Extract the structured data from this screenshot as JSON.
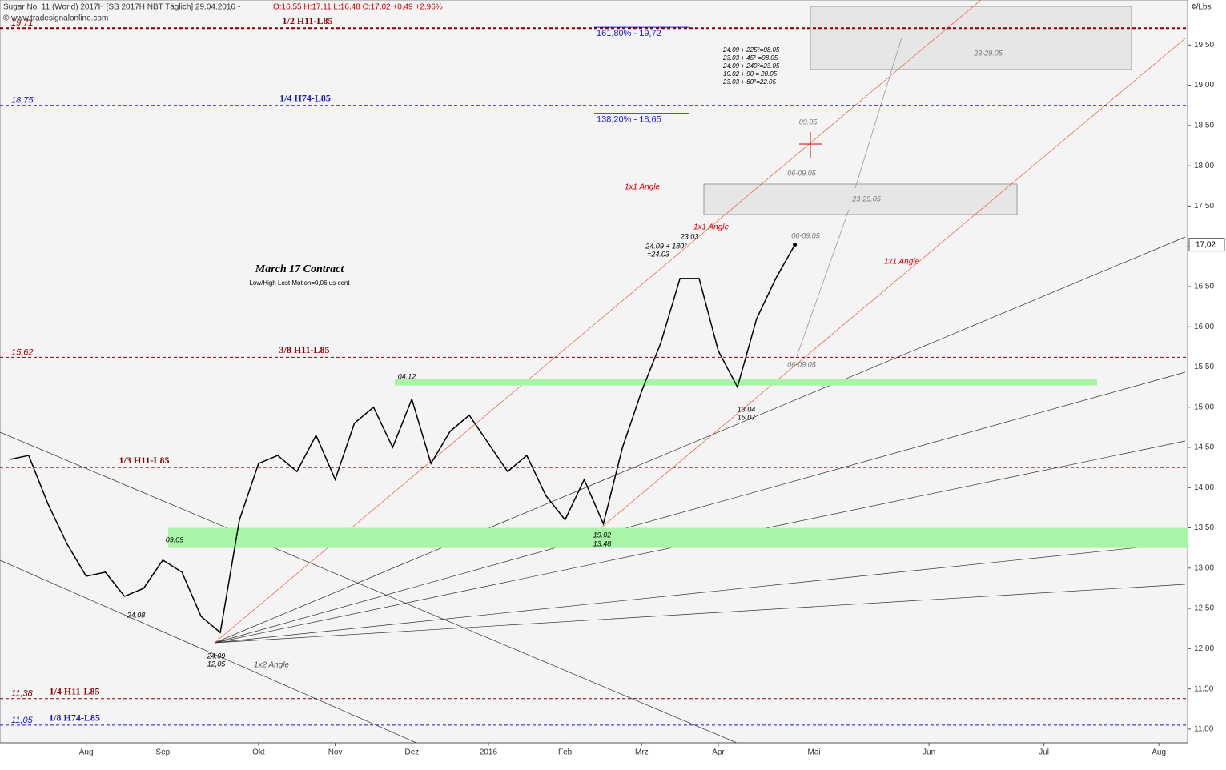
{
  "header": {
    "title": "Sugar No. 11 (World) 2017H [SB 2017H NBT  Täglich] 29.04.2016 -",
    "ohlc": "O:16,55 H:17,11 L:16,48 C:17,02 +0,49 +2,96%",
    "copyright": "© www.tradesignalonline.com",
    "unit": "¢/Lbs"
  },
  "chart_data": {
    "type": "line",
    "categories": [
      null,
      null,
      null,
      null,
      "Aug",
      null,
      null,
      null,
      "Sep",
      null,
      null,
      null,
      null,
      "Okt",
      null,
      null,
      null,
      "Nov",
      null,
      null,
      null,
      "Dez",
      null,
      null,
      null,
      "2016",
      null,
      null,
      null,
      "Feb",
      null,
      null,
      null,
      "Mrz",
      null,
      null,
      null,
      "Apr",
      null,
      null,
      null,
      null,
      "Mai",
      null,
      null,
      null,
      null,
      null,
      "Jun",
      null,
      null,
      null,
      null,
      null,
      "Jul",
      null,
      null,
      null,
      null,
      null,
      "Aug",
      null
    ],
    "series": [
      {
        "color": "#000000",
        "values": [
          14.35,
          14.4,
          13.8,
          13.3,
          12.9,
          12.95,
          12.65,
          12.75,
          13.1,
          12.95,
          12.4,
          12.2,
          13.6,
          14.3,
          14.4,
          14.2,
          14.65,
          14.1,
          14.8,
          15.0,
          14.5,
          15.1,
          14.3,
          14.7,
          14.9,
          14.55,
          14.2,
          14.4,
          13.9,
          13.6,
          14.1,
          13.55,
          14.5,
          15.2,
          15.8,
          16.6,
          16.6,
          15.7,
          15.25,
          16.1,
          16.6,
          17.02,
          null,
          null,
          null,
          null,
          null,
          null,
          null,
          null,
          null,
          null,
          null,
          null,
          null,
          null,
          null,
          null,
          null,
          null,
          null,
          null
        ]
      }
    ],
    "price_label": "17,02",
    "ylim": [
      10.83,
      20.06
    ],
    "yticks": [
      {
        "value": 11,
        "label": "11,00"
      },
      {
        "value": 11.5,
        "label": "11,50"
      },
      {
        "value": 12,
        "label": "12,00"
      },
      {
        "value": 12.5,
        "label": "12,50"
      },
      {
        "value": 13,
        "label": "13,00"
      },
      {
        "value": 13.5,
        "label": "13,50"
      },
      {
        "value": 14,
        "label": "14,00"
      },
      {
        "value": 14.5,
        "label": "14,50"
      },
      {
        "value": 15,
        "label": "15,00"
      },
      {
        "value": 15.5,
        "label": "15,50"
      },
      {
        "value": 16,
        "label": "16,00"
      },
      {
        "value": 16.5,
        "label": "16,50"
      },
      {
        "value": 17,
        "label": "17,00"
      },
      {
        "value": 17.5,
        "label": "17,50"
      },
      {
        "value": 18,
        "label": "18,00"
      },
      {
        "value": 18.5,
        "label": "18,50"
      },
      {
        "value": 19,
        "label": "19,00"
      },
      {
        "value": 19.5,
        "label": "19,50"
      }
    ],
    "levels": [
      {
        "value": 19.71,
        "label": "19,71",
        "name": "1/2 H11-L85",
        "color": "#8b0000"
      },
      {
        "value": 18.75,
        "label": "18,75",
        "name": "1/4 H74-L85",
        "color": "#1a1acc"
      },
      {
        "value": 15.62,
        "label": "15,62",
        "name": "3/8 H11-L85",
        "color": "#8b0000"
      },
      {
        "value": 14.25,
        "name": "1/3 H11-L85",
        "color": "#8b0000"
      },
      {
        "value": 11.38,
        "label": "11,38",
        "name": "1/4 H11-L85",
        "color": "#8b0000"
      },
      {
        "value": 11.05,
        "label": "11,05",
        "name": "1/8 H74-L85",
        "color": "#1a1acc"
      }
    ],
    "zones": [
      {
        "from": 15.27,
        "to": 15.35,
        "color": "#a8f5a8"
      },
      {
        "from": 13.25,
        "to": 13.5,
        "color": "#a8f5a8"
      }
    ],
    "fib": [
      {
        "value": 19.72,
        "label": "161,80% - 19,72"
      },
      {
        "value": 18.65,
        "label": "138,20% - 18,65"
      }
    ],
    "annotations": [
      "March 17 Contract",
      "Low/High Lost Motion=0,06 us cent",
      "1x1 Angle",
      "1x1 Angle",
      "1x1 Angle",
      "1x2 Angle",
      "24.09",
      "12,05",
      "19.02",
      "13,48",
      "13.04",
      "15,07",
      "23.03",
      "24.09 + 180°",
      "=24.03",
      "04.12",
      "09.09",
      "24.08",
      "09.05",
      "06-09.05",
      "06-09.05",
      "06-09.05",
      "23-29.05",
      "23-29.05",
      "24.09 + 225°=08.05",
      "23.03 + 45° =08.05",
      "24.09 + 240°=23.05",
      "19.02 + 90 = 20.05",
      "23.03 + 60°=22.05"
    ]
  }
}
